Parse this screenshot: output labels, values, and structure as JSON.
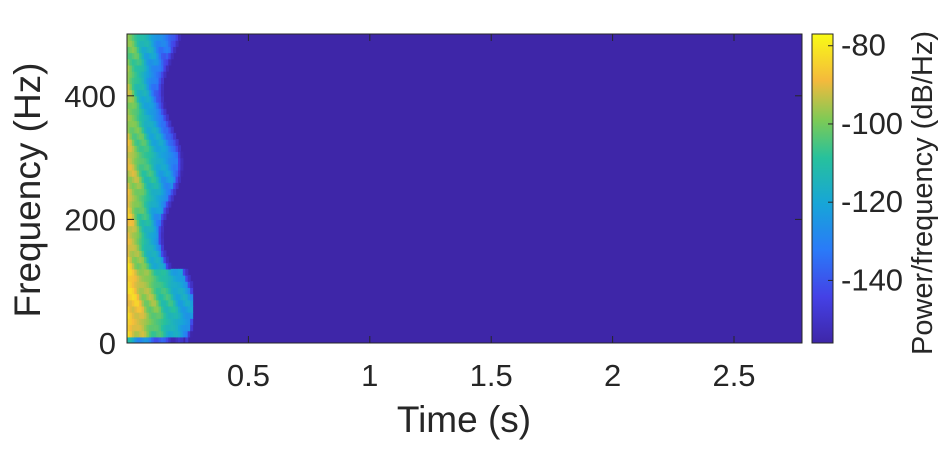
{
  "chart_data": {
    "type": "heatmap",
    "subtype": "spectrogram",
    "xlabel": "Time (s)",
    "ylabel": "Frequency (Hz)",
    "colorbar_label": "Power/frequency (dB/Hz)",
    "colormap": "parula",
    "xlim": [
      0.0,
      2.78
    ],
    "ylim": [
      0,
      500
    ],
    "clim": [
      -156,
      -77
    ],
    "x_ticks": [
      0.5,
      1,
      1.5,
      2,
      2.5
    ],
    "x_tick_labels": [
      "0.5",
      "1",
      "1.5",
      "2",
      "2.5"
    ],
    "y_ticks": [
      0,
      200,
      400
    ],
    "y_tick_labels": [
      "0",
      "200",
      "400"
    ],
    "colorbar_ticks": [
      -80,
      -100,
      -120,
      -140
    ],
    "colorbar_tick_labels": [
      "-80",
      "-100",
      "-120",
      "-140"
    ],
    "background_level_db": -156,
    "active_region": {
      "time_range_s": [
        0.0,
        0.27
      ],
      "peak_level_db": -85,
      "peak_frequency_band_hz": [
        20,
        120
      ],
      "note": "High power concentrated in the first ~0.25 s, strongest at low frequencies and decaying with time; elsewhere the power is at the floor (~-156 dB/Hz)."
    },
    "grid": false
  }
}
